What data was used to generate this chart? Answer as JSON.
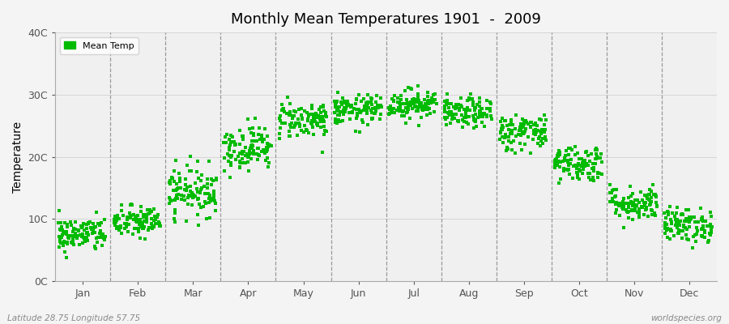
{
  "title": "Monthly Mean Temperatures 1901  -  2009",
  "ylabel": "Temperature",
  "yticks": [
    0,
    10,
    20,
    30,
    40
  ],
  "ytick_labels": [
    "0C",
    "10C",
    "20C",
    "30C",
    "40C"
  ],
  "ylim": [
    0,
    40
  ],
  "months": [
    "Jan",
    "Feb",
    "Mar",
    "Apr",
    "May",
    "Jun",
    "Jul",
    "Aug",
    "Sep",
    "Oct",
    "Nov",
    "Dec"
  ],
  "n_years": 109,
  "marker_color": "#00bb00",
  "marker_size": 2.5,
  "background_color": "#f4f4f4",
  "plot_bg_color": "#f0f0f0",
  "dashed_line_color": "#999999",
  "subtitle_left": "Latitude 28.75 Longitude 57.75",
  "subtitle_right": "worldspecies.org",
  "monthly_mean_temps": [
    7.5,
    9.5,
    14.5,
    21.5,
    26.0,
    27.5,
    28.5,
    27.0,
    24.0,
    19.0,
    12.5,
    9.0
  ],
  "monthly_std_temps": [
    1.4,
    1.3,
    2.0,
    1.8,
    1.5,
    1.2,
    1.2,
    1.2,
    1.5,
    1.5,
    1.4,
    1.4
  ]
}
